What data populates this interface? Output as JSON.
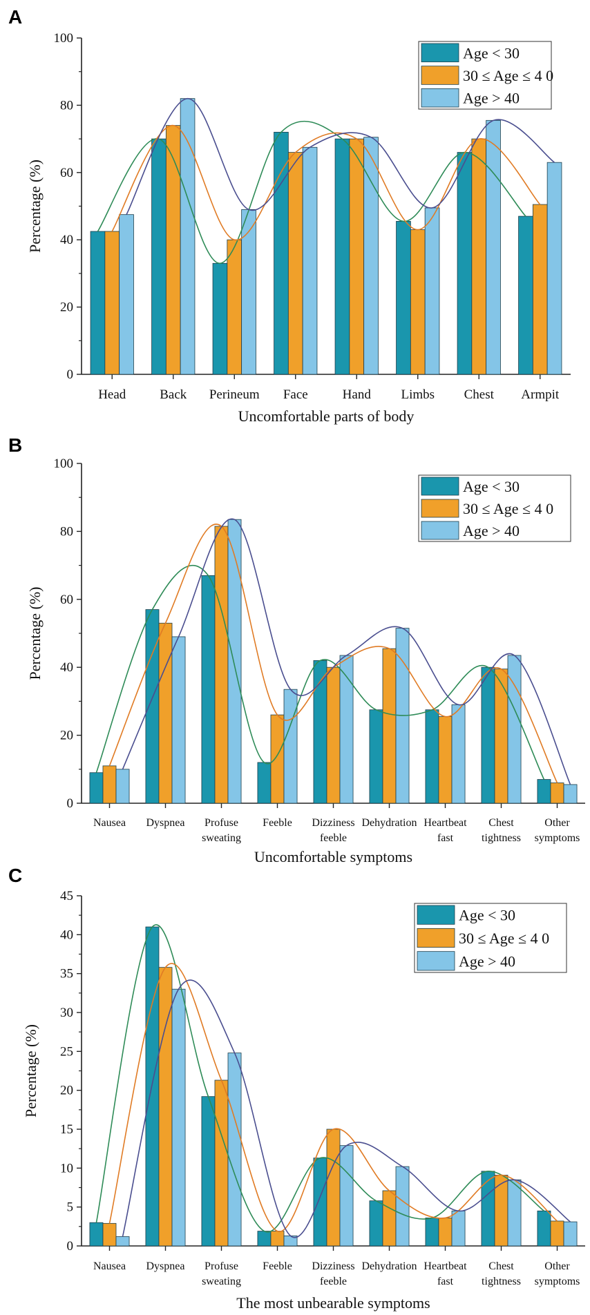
{
  "colors": {
    "series": [
      "#1a96ad",
      "#f0a02a",
      "#84c5e7"
    ],
    "curves": [
      "#2e8b57",
      "#e07b24",
      "#4a4e8f"
    ],
    "axis": "#222222"
  },
  "chart_data": [
    {
      "panel": "A",
      "type": "bar",
      "title": "",
      "xlabel": "Uncomfortable parts of body",
      "ylabel": "Percentage (%)",
      "ylim": [
        0,
        100
      ],
      "yticks": [
        0,
        20,
        40,
        60,
        80,
        100
      ],
      "categories": [
        [
          "Head"
        ],
        [
          "Back"
        ],
        [
          "Perineum"
        ],
        [
          "Face"
        ],
        [
          "Hand"
        ],
        [
          "Limbs"
        ],
        [
          "Chest"
        ],
        [
          "Armpit"
        ]
      ],
      "series": [
        {
          "name": "Age < 30",
          "values": [
            42.5,
            70,
            33,
            72,
            70,
            45.5,
            66,
            47
          ]
        },
        {
          "name": "30 ≤ Age ≤ 4 0",
          "values": [
            42.5,
            74,
            40,
            66,
            70,
            43,
            70,
            50.5
          ]
        },
        {
          "name": "Age > 40",
          "values": [
            47.5,
            82,
            49,
            67.5,
            70.5,
            49.5,
            75.5,
            63
          ]
        }
      ],
      "legend": "top-right",
      "smooth_curves": true
    },
    {
      "panel": "B",
      "type": "bar",
      "title": "",
      "xlabel": "Uncomfortable symptoms",
      "ylabel": "Percentage (%)",
      "ylim": [
        0,
        100
      ],
      "yticks": [
        0,
        20,
        40,
        60,
        80,
        100
      ],
      "categories": [
        [
          "Nausea"
        ],
        [
          "Dyspnea"
        ],
        [
          "Profuse",
          "sweating"
        ],
        [
          "Feeble"
        ],
        [
          "Dizziness",
          "feeble"
        ],
        [
          "Dehydration"
        ],
        [
          "Heartbeat",
          "fast"
        ],
        [
          "Chest",
          "tightness"
        ],
        [
          "Other",
          "symptoms"
        ]
      ],
      "series": [
        {
          "name": "Age < 30",
          "values": [
            9,
            57,
            67,
            12,
            42,
            27.5,
            27.5,
            40,
            7
          ]
        },
        {
          "name": "30 ≤ Age ≤ 4 0",
          "values": [
            11,
            53,
            81.5,
            26,
            40,
            45.5,
            25.5,
            39.5,
            6
          ]
        },
        {
          "name": "Age > 40",
          "values": [
            10,
            49,
            83.5,
            33.5,
            43.5,
            51.5,
            29,
            43.5,
            5.5
          ]
        }
      ],
      "legend": "top-right",
      "smooth_curves": true
    },
    {
      "panel": "C",
      "type": "bar",
      "title": "",
      "xlabel": "The most unbearable symptoms",
      "ylabel": "Percentage (%)",
      "ylim": [
        0,
        45
      ],
      "yticks": [
        0,
        5,
        10,
        15,
        20,
        25,
        30,
        35,
        40,
        45
      ],
      "categories": [
        [
          "Nausea"
        ],
        [
          "Dyspnea"
        ],
        [
          "Profuse",
          "sweating"
        ],
        [
          "Feeble"
        ],
        [
          "Dizziness",
          "feeble"
        ],
        [
          "Dehydration"
        ],
        [
          "Heartbeat",
          "fast"
        ],
        [
          "Chest",
          "tightness"
        ],
        [
          "Other",
          "symptoms"
        ]
      ],
      "series": [
        {
          "name": "Age < 30",
          "values": [
            3,
            41,
            19.2,
            1.9,
            11.3,
            5.8,
            3.6,
            9.6,
            4.5
          ]
        },
        {
          "name": "30 ≤ Age ≤ 4 0",
          "values": [
            2.9,
            35.8,
            21.3,
            1.9,
            15,
            7.1,
            3.6,
            9.1,
            3.2
          ]
        },
        {
          "name": "Age > 40",
          "values": [
            1.2,
            33,
            24.8,
            1.3,
            12.9,
            10.2,
            4.5,
            8.5,
            3.1
          ]
        }
      ],
      "legend": "top-right",
      "smooth_curves": true
    }
  ]
}
